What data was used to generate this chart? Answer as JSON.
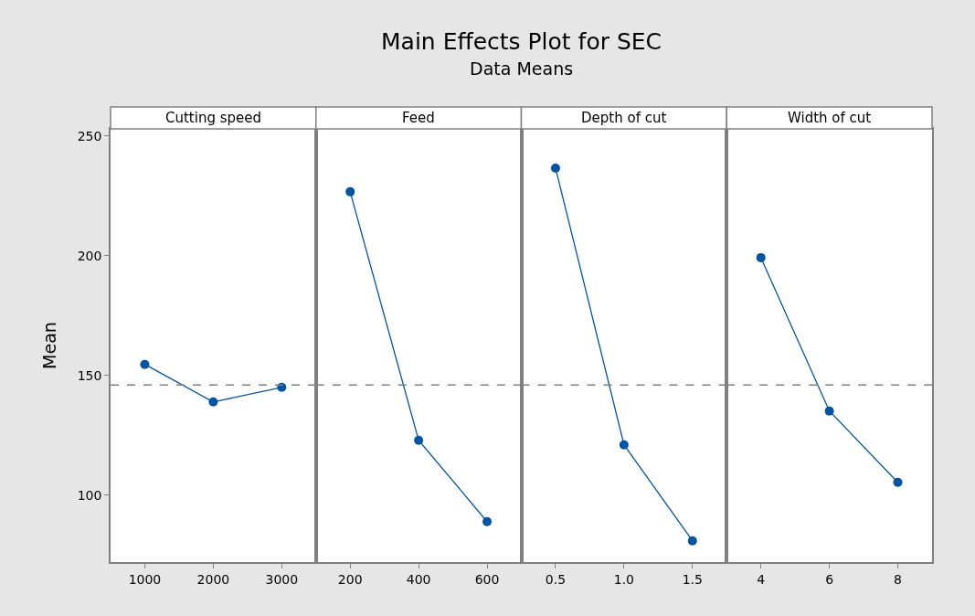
{
  "chart_data": [
    {
      "type": "line",
      "title": "Cutting speed",
      "ylabel": "Mean",
      "annotations": [
        "Main Effects Plot for SEC",
        "Data Means"
      ],
      "x": [
        1000,
        2000,
        3000
      ],
      "xlim": [
        500,
        3500
      ],
      "xticks": [
        1000,
        2000,
        3000
      ],
      "ylim": [
        72,
        253
      ],
      "yticks": [
        100,
        150,
        200,
        250
      ],
      "marker": "circle",
      "grid": false,
      "ref_lines": [
        {
          "axis": "y",
          "value": 146,
          "color": "#808080",
          "line_style": "dashed"
        }
      ],
      "series": [
        {
          "color": "#0054a6",
          "values": [
            154.6,
            138.9,
            145.0
          ]
        }
      ]
    },
    {
      "type": "line",
      "title": "Feed",
      "x": [
        200,
        400,
        600
      ],
      "xlim": [
        100,
        700
      ],
      "xticks": [
        200,
        400,
        600
      ],
      "ylim": [
        72,
        253
      ],
      "yticks": [
        100,
        150,
        200,
        250
      ],
      "tick_labels": "x",
      "marker": "circle",
      "grid": false,
      "ref_lines": [
        {
          "axis": "y",
          "value": 146,
          "color": "#808080",
          "line_style": "dashed"
        }
      ],
      "series": [
        {
          "color": "#0054a6",
          "values": [
            226.7,
            122.9,
            88.9
          ]
        }
      ]
    },
    {
      "type": "line",
      "title": "Depth of cut",
      "x": [
        0.5,
        1.0,
        1.5
      ],
      "xlim": [
        0.25,
        1.75
      ],
      "xticks": [
        {
          "value": 0.5,
          "label": "0.5"
        },
        {
          "value": 1.0,
          "label": "1.0"
        },
        {
          "value": 1.5,
          "label": "1.5"
        }
      ],
      "ylim": [
        72,
        253
      ],
      "yticks": [
        100,
        150,
        200,
        250
      ],
      "tick_labels": "x",
      "marker": "circle",
      "grid": false,
      "ref_lines": [
        {
          "axis": "y",
          "value": 146,
          "color": "#808080",
          "line_style": "dashed"
        }
      ],
      "series": [
        {
          "color": "#0054a6",
          "values": [
            236.6,
            121.0,
            80.9
          ]
        }
      ]
    },
    {
      "type": "line",
      "title": "Width of cut",
      "x": [
        4,
        6,
        8
      ],
      "xlim": [
        3,
        9
      ],
      "xticks": [
        4,
        6,
        8
      ],
      "ylim": [
        72,
        253
      ],
      "yticks": [
        100,
        150,
        200,
        250
      ],
      "tick_labels": "x",
      "marker": "circle",
      "grid": false,
      "ref_lines": [
        {
          "axis": "y",
          "value": 146,
          "color": "#808080",
          "line_style": "dashed"
        }
      ],
      "series": [
        {
          "color": "#0054a6",
          "values": [
            199.2,
            135.1,
            105.3
          ]
        }
      ]
    }
  ]
}
